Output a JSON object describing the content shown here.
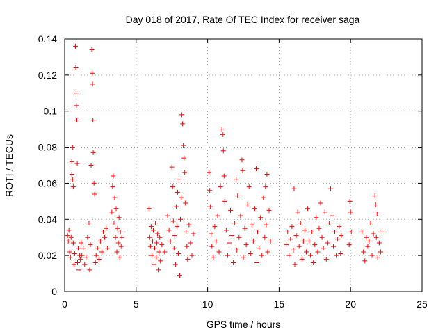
{
  "chart_data": {
    "type": "scatter",
    "title": "Day 018 of 2017, Rate Of TEC Index for receiver saga",
    "xlabel": "GPS time / hours",
    "ylabel": "ROTI / TECUs",
    "xlim": [
      0,
      25
    ],
    "ylim": [
      0,
      0.14
    ],
    "x_ticks": [
      0,
      5,
      10,
      15,
      20,
      25
    ],
    "x_tick_labels": [
      "0",
      "5",
      "10",
      "15",
      "20",
      "25"
    ],
    "y_ticks": [
      0,
      0.02,
      0.04,
      0.06,
      0.08,
      0.1,
      0.12,
      0.14
    ],
    "y_tick_labels": [
      "0",
      "0.02",
      "0.04",
      "0.06",
      "0.08",
      "0.1",
      "0.12",
      "0.14"
    ],
    "grid": true,
    "marker": "+",
    "color": "#ff0000",
    "series": [
      {
        "name": "ROTI",
        "points": [
          [
            0.2,
            0.031
          ],
          [
            0.25,
            0.028
          ],
          [
            0.3,
            0.034
          ],
          [
            0.35,
            0.022
          ],
          [
            0.4,
            0.019
          ],
          [
            0.45,
            0.03
          ],
          [
            0.5,
            0.072
          ],
          [
            0.5,
            0.065
          ],
          [
            0.55,
            0.08
          ],
          [
            0.55,
            0.062
          ],
          [
            0.6,
            0.058
          ],
          [
            0.6,
            0.027
          ],
          [
            0.65,
            0.015
          ],
          [
            0.7,
            0.021
          ],
          [
            0.75,
            0.136
          ],
          [
            0.78,
            0.124
          ],
          [
            0.8,
            0.11
          ],
          [
            0.82,
            0.103
          ],
          [
            0.85,
            0.095
          ],
          [
            0.88,
            0.071
          ],
          [
            0.9,
            0.016
          ],
          [
            0.95,
            0.024
          ],
          [
            1.0,
            0.012
          ],
          [
            1.05,
            0.02
          ],
          [
            1.1,
            0.018
          ],
          [
            1.15,
            0.027
          ],
          [
            1.2,
            0.02
          ],
          [
            1.3,
            0.024
          ],
          [
            1.4,
            0.015
          ],
          [
            1.5,
            0.019
          ],
          [
            1.6,
            0.03
          ],
          [
            1.7,
            0.038
          ],
          [
            1.75,
            0.012
          ],
          [
            1.8,
            0.026
          ],
          [
            1.85,
            0.07
          ],
          [
            1.9,
            0.134
          ],
          [
            1.92,
            0.121
          ],
          [
            1.95,
            0.115
          ],
          [
            1.98,
            0.095
          ],
          [
            2.0,
            0.077
          ],
          [
            2.05,
            0.06
          ],
          [
            2.1,
            0.054
          ],
          [
            2.15,
            0.016
          ],
          [
            2.2,
            0.02
          ],
          [
            2.3,
            0.024
          ],
          [
            2.4,
            0.018
          ],
          [
            2.5,
            0.028
          ],
          [
            2.6,
            0.022
          ],
          [
            2.7,
            0.033
          ],
          [
            2.8,
            0.03
          ],
          [
            2.9,
            0.035
          ],
          [
            3.0,
            0.024
          ],
          [
            3.3,
            0.044
          ],
          [
            3.35,
            0.058
          ],
          [
            3.4,
            0.064
          ],
          [
            3.45,
            0.038
          ],
          [
            3.5,
            0.052
          ],
          [
            3.55,
            0.03
          ],
          [
            3.6,
            0.046
          ],
          [
            3.65,
            0.022
          ],
          [
            3.7,
            0.035
          ],
          [
            3.75,
            0.027
          ],
          [
            3.8,
            0.041
          ],
          [
            3.85,
            0.019
          ],
          [
            3.9,
            0.033
          ],
          [
            3.95,
            0.025
          ],
          [
            4.0,
            0.03
          ],
          [
            5.9,
            0.046
          ],
          [
            5.95,
            0.03
          ],
          [
            6.0,
            0.025
          ],
          [
            6.05,
            0.036
          ],
          [
            6.1,
            0.02
          ],
          [
            6.15,
            0.028
          ],
          [
            6.2,
            0.034
          ],
          [
            6.25,
            0.015
          ],
          [
            6.3,
            0.024
          ],
          [
            6.35,
            0.038
          ],
          [
            6.4,
            0.019
          ],
          [
            6.45,
            0.027
          ],
          [
            6.5,
            0.032
          ],
          [
            6.55,
            0.012
          ],
          [
            6.6,
            0.022
          ],
          [
            6.65,
            0.03
          ],
          [
            6.7,
            0.017
          ],
          [
            6.8,
            0.026
          ],
          [
            7.0,
            0.022
          ],
          [
            7.2,
            0.042
          ],
          [
            7.3,
            0.034
          ],
          [
            7.4,
            0.028
          ],
          [
            7.5,
            0.069
          ],
          [
            7.55,
            0.058
          ],
          [
            7.6,
            0.039
          ],
          [
            7.65,
            0.024
          ],
          [
            7.7,
            0.031
          ],
          [
            7.75,
            0.015
          ],
          [
            7.8,
            0.047
          ],
          [
            7.85,
            0.036
          ],
          [
            7.9,
            0.055
          ],
          [
            7.95,
            0.021
          ],
          [
            8.0,
            0.062
          ],
          [
            8.05,
            0.009
          ],
          [
            8.1,
            0.04
          ],
          [
            8.15,
            0.052
          ],
          [
            8.2,
            0.098
          ],
          [
            8.25,
            0.093
          ],
          [
            8.3,
            0.081
          ],
          [
            8.35,
            0.074
          ],
          [
            8.4,
            0.066
          ],
          [
            8.45,
            0.049
          ],
          [
            8.5,
            0.033
          ],
          [
            8.55,
            0.025
          ],
          [
            8.6,
            0.018
          ],
          [
            8.7,
            0.037
          ],
          [
            8.8,
            0.027
          ],
          [
            8.9,
            0.02
          ],
          [
            9.0,
            0.032
          ],
          [
            10.1,
            0.066
          ],
          [
            10.15,
            0.056
          ],
          [
            10.2,
            0.047
          ],
          [
            10.25,
            0.032
          ],
          [
            10.3,
            0.025
          ],
          [
            10.4,
            0.019
          ],
          [
            10.5,
            0.036
          ],
          [
            10.6,
            0.028
          ],
          [
            10.7,
            0.042
          ],
          [
            10.8,
            0.022
          ],
          [
            10.9,
            0.058
          ],
          [
            11.0,
            0.09
          ],
          [
            11.05,
            0.087
          ],
          [
            11.1,
            0.078
          ],
          [
            11.15,
            0.064
          ],
          [
            11.2,
            0.05
          ],
          [
            11.3,
            0.034
          ],
          [
            11.4,
            0.02
          ],
          [
            11.5,
            0.027
          ],
          [
            11.6,
            0.045
          ],
          [
            11.7,
            0.031
          ],
          [
            11.8,
            0.016
          ],
          [
            11.9,
            0.038
          ],
          [
            12.0,
            0.062
          ],
          [
            12.05,
            0.023
          ],
          [
            12.1,
            0.053
          ],
          [
            12.2,
            0.03
          ],
          [
            12.3,
            0.042
          ],
          [
            12.4,
            0.073
          ],
          [
            12.45,
            0.067
          ],
          [
            12.5,
            0.019
          ],
          [
            12.6,
            0.035
          ],
          [
            12.7,
            0.026
          ],
          [
            12.8,
            0.048
          ],
          [
            12.9,
            0.058
          ],
          [
            13.0,
            0.021
          ],
          [
            13.1,
            0.037
          ],
          [
            13.2,
            0.028
          ],
          [
            13.3,
            0.046
          ],
          [
            13.4,
            0.068
          ],
          [
            13.45,
            0.016
          ],
          [
            13.5,
            0.033
          ],
          [
            13.6,
            0.024
          ],
          [
            13.7,
            0.041
          ],
          [
            13.8,
            0.02
          ],
          [
            13.9,
            0.052
          ],
          [
            14.0,
            0.03
          ],
          [
            14.05,
            0.058
          ],
          [
            14.1,
            0.037
          ],
          [
            14.15,
            0.065
          ],
          [
            14.2,
            0.022
          ],
          [
            14.3,
            0.045
          ],
          [
            14.4,
            0.028
          ],
          [
            15.5,
            0.026
          ],
          [
            15.6,
            0.033
          ],
          [
            15.7,
            0.02
          ],
          [
            15.8,
            0.029
          ],
          [
            15.9,
            0.036
          ],
          [
            16.0,
            0.023
          ],
          [
            16.05,
            0.057
          ],
          [
            16.1,
            0.015
          ],
          [
            16.2,
            0.031
          ],
          [
            16.3,
            0.044
          ],
          [
            16.4,
            0.025
          ],
          [
            16.5,
            0.038
          ],
          [
            16.6,
            0.018
          ],
          [
            16.7,
            0.028
          ],
          [
            16.8,
            0.034
          ],
          [
            16.9,
            0.022
          ],
          [
            17.0,
            0.046
          ],
          [
            17.1,
            0.028
          ],
          [
            17.2,
            0.02
          ],
          [
            17.3,
            0.033
          ],
          [
            17.4,
            0.016
          ],
          [
            17.5,
            0.026
          ],
          [
            17.6,
            0.041
          ],
          [
            17.7,
            0.022
          ],
          [
            17.8,
            0.035
          ],
          [
            17.9,
            0.049
          ],
          [
            18.0,
            0.03
          ],
          [
            18.1,
            0.024
          ],
          [
            18.2,
            0.044
          ],
          [
            18.3,
            0.018
          ],
          [
            18.4,
            0.027
          ],
          [
            18.5,
            0.038
          ],
          [
            18.6,
            0.057
          ],
          [
            18.7,
            0.042
          ],
          [
            18.8,
            0.025
          ],
          [
            18.9,
            0.033
          ],
          [
            19.0,
            0.02
          ],
          [
            19.1,
            0.029
          ],
          [
            19.2,
            0.036
          ],
          [
            19.3,
            0.021
          ],
          [
            19.35,
            0.031
          ],
          [
            19.9,
            0.026
          ],
          [
            19.95,
            0.05
          ],
          [
            20.0,
            0.044
          ],
          [
            20.05,
            0.033
          ],
          [
            20.8,
            0.033
          ],
          [
            20.9,
            0.022
          ],
          [
            21.0,
            0.017
          ],
          [
            21.1,
            0.03
          ],
          [
            21.2,
            0.025
          ],
          [
            21.3,
            0.028
          ],
          [
            21.4,
            0.038
          ],
          [
            21.5,
            0.02
          ],
          [
            21.6,
            0.032
          ],
          [
            21.7,
            0.053
          ],
          [
            21.75,
            0.048
          ],
          [
            21.8,
            0.03
          ],
          [
            21.85,
            0.043
          ],
          [
            21.9,
            0.019
          ],
          [
            22.0,
            0.027
          ],
          [
            22.1,
            0.022
          ],
          [
            22.2,
            0.033
          ]
        ]
      }
    ]
  }
}
